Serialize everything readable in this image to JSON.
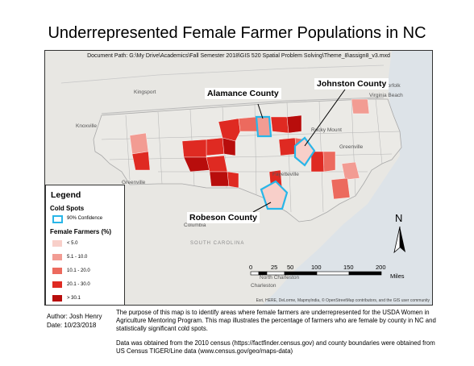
{
  "title": "Underrepresented Female Farmer Populations in NC",
  "doc_path": "Document Path: G:\\My Drive\\Academics\\Fall Semester 2018\\GIS 520 Spatial Problem Solving\\Theme_8\\assign8_v3.mxd",
  "callouts": {
    "alamance": "Alamance County",
    "johnston": "Johnston County",
    "robeson": "Robeson County"
  },
  "cities": [
    {
      "name": "Norfolk"
    },
    {
      "name": "Virginia Beach"
    },
    {
      "name": "Kingsport"
    },
    {
      "name": "Knoxville"
    },
    {
      "name": "Rocky Mount"
    },
    {
      "name": "Greenville"
    },
    {
      "name": "Greenville"
    },
    {
      "name": "Columbia"
    },
    {
      "name": "North Charleston"
    },
    {
      "name": "Charleston"
    },
    {
      "name": "Fayetteville"
    }
  ],
  "state_labels": {
    "south_carolina": "SOUTH CAROLINA"
  },
  "legend": {
    "title": "Legend",
    "cold_header": "Cold Spots",
    "cold_item": "90% Confidence",
    "cold_color": "#29b6e8",
    "female_header": "Female Farmers (%)",
    "classes": [
      {
        "label": "< 5.0",
        "color": "#f8cfc9"
      },
      {
        "label": "5.1 - 10.0",
        "color": "#f29c93"
      },
      {
        "label": "10.1 - 20.0",
        "color": "#ec6a5e"
      },
      {
        "label": "20.1 - 30.0",
        "color": "#df2a22"
      },
      {
        "label": "> 30.1",
        "color": "#b80d0c"
      }
    ]
  },
  "north_label": "N",
  "scale": {
    "ticks": [
      "0",
      "25",
      "50",
      "100",
      "150",
      "200"
    ],
    "units": "Miles"
  },
  "credits": "Esri, HERE, DeLorme, MapmyIndia, © OpenStreetMap contributors, and the GIS user community",
  "author": {
    "line1": "Author: Josh Henry",
    "line2": "Date: 10/23/2018"
  },
  "description": {
    "p1": "The purpose of this map is to identify areas where female farmers are underrepresented for the USDA Women in Agriculture Mentoring Program. This map illustrates the percentage of farmers who are female by county in NC and statistically significant cold spots.",
    "p2": "Data was obtained from the 2010 census (https://factfinder.census.gov) and county boundaries were obtained from US Census TIGER/Line data (www.census.gov/geo/maps-data)"
  }
}
